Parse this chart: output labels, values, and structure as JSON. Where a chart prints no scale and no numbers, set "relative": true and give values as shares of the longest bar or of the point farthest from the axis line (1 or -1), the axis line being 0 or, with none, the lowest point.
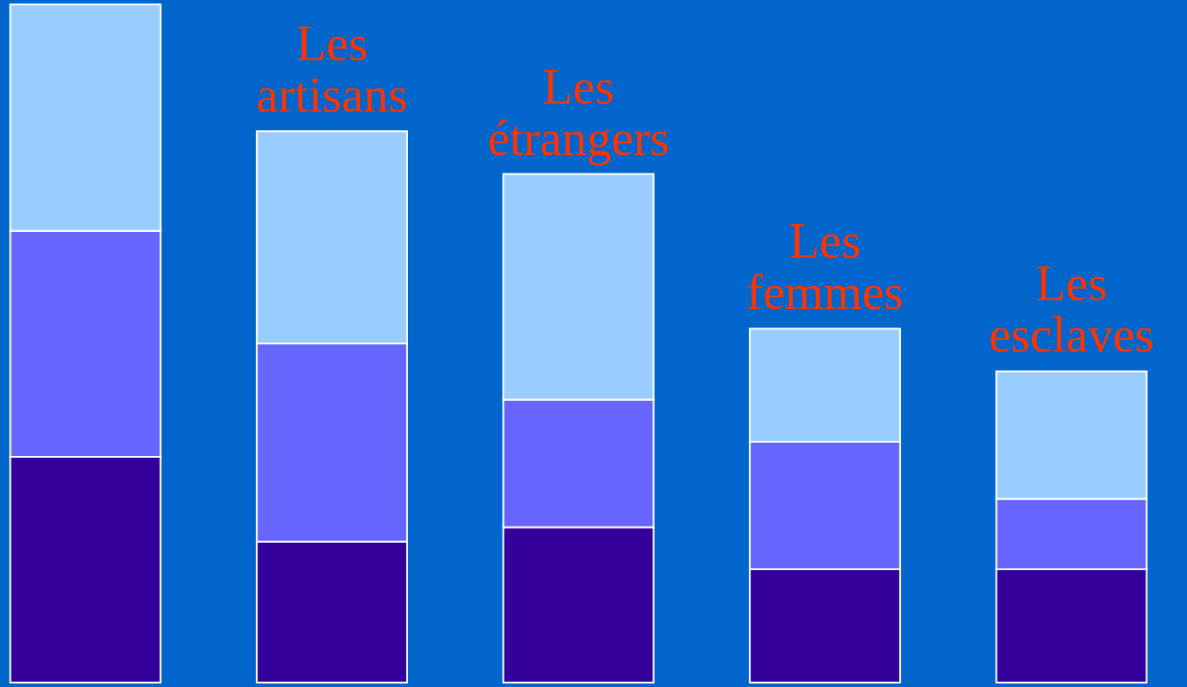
{
  "chart_data": {
    "type": "bar",
    "stacked": true,
    "relative": true,
    "categories": [
      null,
      "Les artisans",
      "Les étrangers",
      "Les femmes",
      "Les esclaves"
    ],
    "series": [
      {
        "color": "#330099",
        "values": [
          0.333,
          0.208,
          0.229,
          0.167,
          0.167
        ]
      },
      {
        "color": "#6666ff",
        "values": [
          0.333,
          0.292,
          0.188,
          0.188,
          0.104
        ]
      },
      {
        "color": "#99ccff",
        "values": [
          0.334,
          0.313,
          0.333,
          0.167,
          0.188
        ]
      }
    ]
  }
}
